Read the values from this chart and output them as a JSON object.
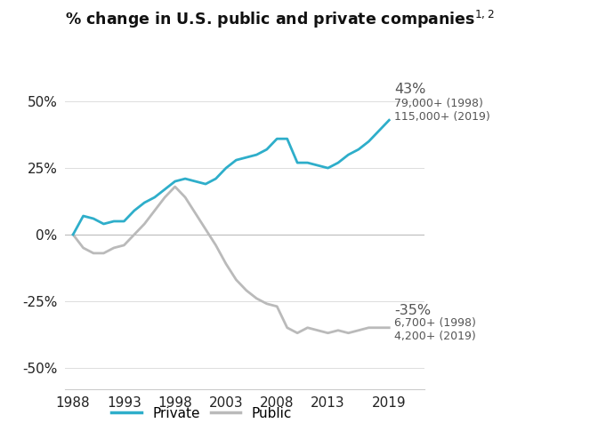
{
  "title": "% change in U.S. public and private companies",
  "title_superscript": "1,2",
  "private_x": [
    1988,
    1989,
    1990,
    1991,
    1992,
    1993,
    1994,
    1995,
    1996,
    1997,
    1998,
    1999,
    2000,
    2001,
    2002,
    2003,
    2004,
    2005,
    2006,
    2007,
    2008,
    2009,
    2010,
    2011,
    2012,
    2013,
    2014,
    2015,
    2016,
    2017,
    2018,
    2019
  ],
  "private_y": [
    0,
    7,
    6,
    4,
    5,
    5,
    9,
    12,
    14,
    17,
    20,
    21,
    20,
    19,
    21,
    25,
    28,
    29,
    30,
    32,
    36,
    36,
    27,
    27,
    26,
    25,
    27,
    30,
    32,
    35,
    39,
    43
  ],
  "public_x": [
    1988,
    1989,
    1990,
    1991,
    1992,
    1993,
    1994,
    1995,
    1996,
    1997,
    1998,
    1999,
    2000,
    2001,
    2002,
    2003,
    2004,
    2005,
    2006,
    2007,
    2008,
    2009,
    2010,
    2011,
    2012,
    2013,
    2014,
    2015,
    2016,
    2017,
    2018,
    2019
  ],
  "public_y": [
    0,
    -5,
    -7,
    -7,
    -5,
    -4,
    0,
    4,
    9,
    14,
    18,
    14,
    8,
    2,
    -4,
    -11,
    -17,
    -21,
    -24,
    -26,
    -27,
    -35,
    -37,
    -35,
    -36,
    -37,
    -36,
    -37,
    -36,
    -35,
    -35,
    -35
  ],
  "private_color": "#2EAECA",
  "public_color": "#BABABA",
  "private_label": "Private",
  "public_label": "Public",
  "yticks": [
    -50,
    -25,
    0,
    25,
    50
  ],
  "ytick_labels": [
    "-50%",
    "-25%",
    "0%",
    "25%",
    "50%"
  ],
  "xticks": [
    1988,
    1993,
    1998,
    2003,
    2008,
    2013,
    2019
  ],
  "ylim": [
    -58,
    68
  ],
  "xlim": [
    1987.2,
    2022.5
  ],
  "annotation_private_pct": "43%",
  "annotation_private_line1": "79,000+ (1998)",
  "annotation_private_line2": "115,000+ (2019)",
  "annotation_public_pct": "-35%",
  "annotation_public_line1": "6,700+ (1998)",
  "annotation_public_line2": "4,200+ (2019)",
  "line_width": 2.0,
  "background_color": "#FFFFFF",
  "grid_color": "#DDDDDD",
  "zero_line_color": "#BBBBBB",
  "text_color": "#222222",
  "annot_color": "#555555"
}
